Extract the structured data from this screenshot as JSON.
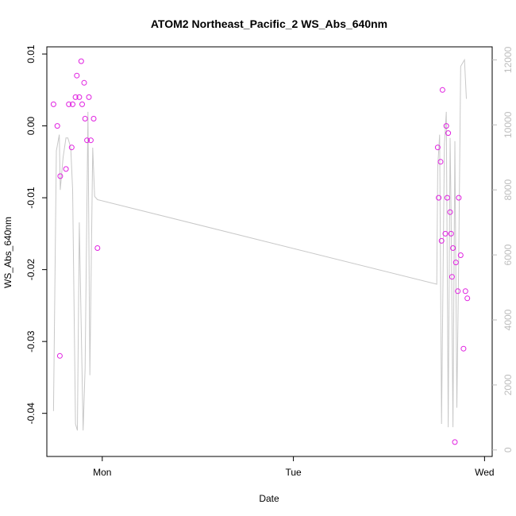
{
  "chart_data": {
    "type": "scatter",
    "title": "ATOM2 Northeast_Pacific_2 WS_Abs_640nm",
    "xlabel": "Date",
    "ylabel": "WS_Abs_640nm",
    "x_unit": "days since Mon 00:00",
    "xlim": [
      -0.29,
      2.04
    ],
    "x_ticks": [
      {
        "value": 0,
        "label": "Mon"
      },
      {
        "value": 1,
        "label": "Tue"
      },
      {
        "value": 2,
        "label": "Wed"
      }
    ],
    "ylim": [
      -0.046,
      0.011
    ],
    "y_ticks": [
      {
        "value": 0.01,
        "label": "0.01"
      },
      {
        "value": 0.0,
        "label": "0.00"
      },
      {
        "value": -0.01,
        "label": "-0.01"
      },
      {
        "value": -0.02,
        "label": "-0.02"
      },
      {
        "value": -0.03,
        "label": "-0.03"
      },
      {
        "value": -0.04,
        "label": "-0.04"
      }
    ],
    "y2lim": [
      -200,
      12400
    ],
    "y2_ticks": [
      {
        "value": 0,
        "label": "0"
      },
      {
        "value": 2000,
        "label": "2000"
      },
      {
        "value": 4000,
        "label": "4000"
      },
      {
        "value": 6000,
        "label": "6000"
      },
      {
        "value": 8000,
        "label": "8000"
      },
      {
        "value": 10000,
        "label": "10000"
      },
      {
        "value": 12000,
        "label": "12000"
      }
    ],
    "grid": false,
    "colors": {
      "points": "#e020e0",
      "line": "#c8c8c8",
      "axis": "#000000",
      "right_axis": "#bdbdbd"
    },
    "series": [
      {
        "kind": "points",
        "axis": "left",
        "points": [
          [
            -0.255,
            0.003
          ],
          [
            -0.235,
            0.0
          ],
          [
            -0.22,
            -0.007
          ],
          [
            -0.222,
            -0.032
          ],
          [
            -0.19,
            -0.006
          ],
          [
            -0.175,
            0.003
          ],
          [
            -0.155,
            0.003
          ],
          [
            -0.16,
            -0.003
          ],
          [
            -0.14,
            0.004
          ],
          [
            -0.133,
            0.007
          ],
          [
            -0.12,
            0.004
          ],
          [
            -0.11,
            0.009
          ],
          [
            -0.105,
            0.003
          ],
          [
            -0.095,
            0.006
          ],
          [
            -0.09,
            0.001
          ],
          [
            -0.08,
            -0.002
          ],
          [
            -0.07,
            0.004
          ],
          [
            -0.06,
            -0.002
          ],
          [
            -0.045,
            0.001
          ],
          [
            -0.025,
            -0.017
          ],
          [
            1.755,
            -0.003
          ],
          [
            1.76,
            -0.01
          ],
          [
            1.77,
            -0.005
          ],
          [
            1.775,
            -0.016
          ],
          [
            1.78,
            0.005
          ],
          [
            1.795,
            -0.015
          ],
          [
            1.8,
            0.0
          ],
          [
            1.805,
            -0.01
          ],
          [
            1.81,
            -0.001
          ],
          [
            1.82,
            -0.012
          ],
          [
            1.825,
            -0.015
          ],
          [
            1.83,
            -0.021
          ],
          [
            1.835,
            -0.017
          ],
          [
            1.845,
            -0.044
          ],
          [
            1.85,
            -0.019
          ],
          [
            1.86,
            -0.023
          ],
          [
            1.865,
            -0.01
          ],
          [
            1.875,
            -0.018
          ],
          [
            1.89,
            -0.031
          ],
          [
            1.9,
            -0.023
          ],
          [
            1.91,
            -0.024
          ]
        ]
      },
      {
        "kind": "line",
        "axis": "right",
        "points": [
          [
            -0.255,
            1200
          ],
          [
            -0.24,
            9200
          ],
          [
            -0.225,
            9700
          ],
          [
            -0.22,
            8000
          ],
          [
            -0.205,
            9000
          ],
          [
            -0.19,
            9600
          ],
          [
            -0.18,
            9600
          ],
          [
            -0.165,
            9300
          ],
          [
            -0.155,
            8000
          ],
          [
            -0.14,
            800
          ],
          [
            -0.13,
            600
          ],
          [
            -0.12,
            7000
          ],
          [
            -0.1,
            600
          ],
          [
            -0.09,
            2500
          ],
          [
            -0.075,
            10400
          ],
          [
            -0.065,
            2300
          ],
          [
            -0.05,
            9300
          ],
          [
            -0.04,
            7800
          ],
          [
            -0.025,
            7700
          ],
          [
            1.75,
            5100
          ],
          [
            1.755,
            8700
          ],
          [
            1.765,
            9700
          ],
          [
            1.775,
            800
          ],
          [
            1.79,
            9400
          ],
          [
            1.8,
            10400
          ],
          [
            1.81,
            700
          ],
          [
            1.82,
            9600
          ],
          [
            1.825,
            7400
          ],
          [
            1.835,
            700
          ],
          [
            1.845,
            9500
          ],
          [
            1.855,
            1300
          ],
          [
            1.865,
            6000
          ],
          [
            1.875,
            11800
          ],
          [
            1.885,
            11900
          ],
          [
            1.895,
            12000
          ],
          [
            1.905,
            10800
          ]
        ]
      }
    ]
  }
}
